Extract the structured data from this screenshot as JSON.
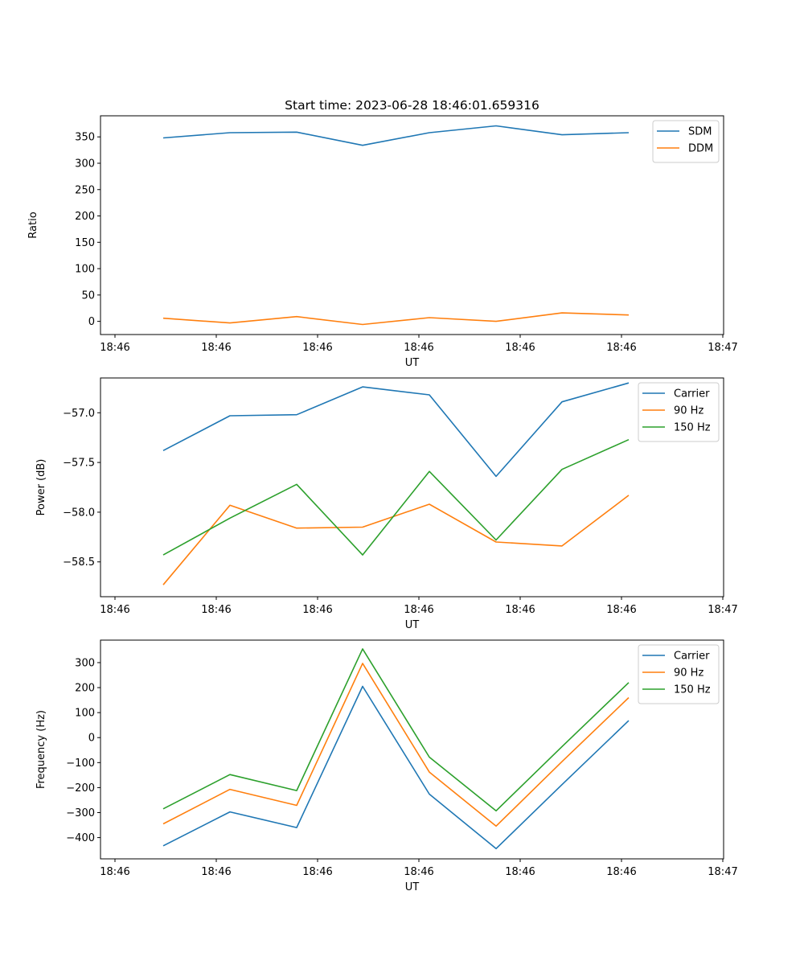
{
  "chart_data": [
    {
      "type": "line",
      "title": "Start time: 2023-06-28 18:46:01.659316",
      "xlabel": "UT",
      "ylabel": "Ratio",
      "x_tick_labels": [
        "18:46",
        "18:46",
        "18:46",
        "18:46",
        "18:46",
        "18:46",
        "18:47"
      ],
      "y_ticks": [
        0,
        50,
        100,
        150,
        200,
        250,
        300,
        350
      ],
      "y_tick_labels": [
        "0",
        "50",
        "100",
        "150",
        "200",
        "250",
        "300",
        "350"
      ],
      "ylim": [
        -25,
        390
      ],
      "legend_position": "upper right",
      "series": [
        {
          "name": "SDM",
          "color": "#1f77b4",
          "values": [
            348,
            358,
            359,
            334,
            358,
            371,
            354,
            358
          ]
        },
        {
          "name": "DDM",
          "color": "#ff7f0e",
          "values": [
            6,
            -3,
            9,
            -6,
            7,
            0,
            16,
            12
          ]
        }
      ]
    },
    {
      "type": "line",
      "title": "",
      "xlabel": "UT",
      "ylabel": "Power (dB)",
      "x_tick_labels": [
        "18:46",
        "18:46",
        "18:46",
        "18:46",
        "18:46",
        "18:46",
        "18:47"
      ],
      "y_ticks": [
        -57.0,
        -57.5,
        -58.0,
        -58.5
      ],
      "y_tick_labels": [
        "−57.0",
        "−57.5",
        "−58.0",
        "−58.5"
      ],
      "ylim": [
        -58.85,
        -56.65
      ],
      "legend_position": "upper right",
      "series": [
        {
          "name": "Carrier",
          "color": "#1f77b4",
          "values": [
            -57.38,
            -57.03,
            -57.02,
            -56.74,
            -56.82,
            -57.64,
            -56.89,
            -56.7
          ]
        },
        {
          "name": "90 Hz",
          "color": "#ff7f0e",
          "values": [
            -58.73,
            -57.93,
            -58.16,
            -58.15,
            -57.92,
            -58.3,
            -58.34,
            -57.83
          ]
        },
        {
          "name": "150 Hz",
          "color": "#2ca02c",
          "values": [
            -58.43,
            -58.06,
            -57.72,
            -58.43,
            -57.59,
            -58.28,
            -57.57,
            -57.27
          ]
        }
      ]
    },
    {
      "type": "line",
      "title": "",
      "xlabel": "UT",
      "ylabel": "Frequency (Hz)",
      "x_tick_labels": [
        "18:46",
        "18:46",
        "18:46",
        "18:46",
        "18:46",
        "18:46",
        "18:47"
      ],
      "y_ticks": [
        300,
        200,
        100,
        0,
        -100,
        -200,
        -300,
        -400
      ],
      "y_tick_labels": [
        "300",
        "200",
        "100",
        "0",
        "−100",
        "−200",
        "−300",
        "−400"
      ],
      "ylim": [
        -485,
        390
      ],
      "legend_position": "upper right",
      "series": [
        {
          "name": "Carrier",
          "color": "#1f77b4",
          "values": [
            -433,
            -297,
            -360,
            205,
            -226,
            -444,
            -188,
            68
          ]
        },
        {
          "name": "90 Hz",
          "color": "#ff7f0e",
          "values": [
            -345,
            -207,
            -271,
            297,
            -138,
            -354,
            -96,
            160
          ]
        },
        {
          "name": "150 Hz",
          "color": "#2ca02c",
          "values": [
            -285,
            -148,
            -212,
            355,
            -78,
            -293,
            -36,
            220
          ]
        }
      ]
    }
  ]
}
